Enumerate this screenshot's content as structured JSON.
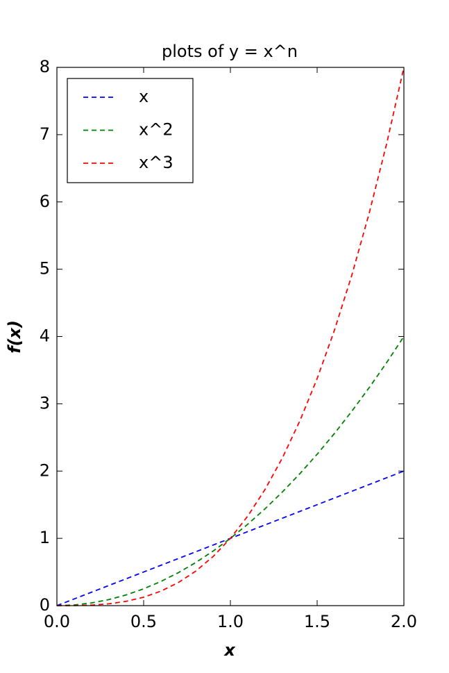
{
  "chart_data": {
    "type": "line",
    "title": "plots of y = x^n",
    "x_label": "x",
    "y_label": "f(x)",
    "x": [
      0,
      0.1,
      0.2,
      0.3,
      0.4,
      0.5,
      0.6,
      0.7,
      0.8,
      0.9,
      1.0,
      1.1,
      1.2,
      1.3,
      1.4,
      1.5,
      1.6,
      1.7,
      1.8,
      1.9,
      2.0
    ],
    "series": [
      {
        "name": "x",
        "color": "#0000ff",
        "values": [
          0,
          0.1,
          0.2,
          0.3,
          0.4,
          0.5,
          0.6,
          0.7,
          0.8,
          0.9,
          1.0,
          1.1,
          1.2,
          1.3,
          1.4,
          1.5,
          1.6,
          1.7,
          1.8,
          1.9,
          2.0
        ]
      },
      {
        "name": "x^2",
        "color": "#008000",
        "values": [
          0,
          0.01,
          0.04,
          0.09,
          0.16,
          0.25,
          0.36,
          0.49,
          0.64,
          0.81,
          1,
          1.21,
          1.44,
          1.69,
          1.96,
          2.25,
          2.56,
          2.89,
          3.24,
          3.61,
          4
        ]
      },
      {
        "name": "x^3",
        "color": "#ff0000",
        "values": [
          0,
          0.001,
          0.008,
          0.027,
          0.064,
          0.125,
          0.216,
          0.343,
          0.512,
          0.729,
          1,
          1.331,
          1.728,
          2.197,
          2.744,
          3.375,
          4.096,
          4.913,
          5.832,
          6.859,
          8
        ]
      }
    ],
    "xlim": [
      0,
      2
    ],
    "ylim": [
      0,
      8
    ],
    "xticks": [
      {
        "value": 0,
        "label": "0.0"
      },
      {
        "value": 0.5,
        "label": "0.5"
      },
      {
        "value": 1,
        "label": "1.0"
      },
      {
        "value": 1.5,
        "label": "1.5"
      },
      {
        "value": 2,
        "label": "2.0"
      }
    ],
    "yticks": [
      0,
      1,
      2,
      3,
      4,
      5,
      6,
      7,
      8
    ],
    "grid": false,
    "legend": "upper left"
  }
}
